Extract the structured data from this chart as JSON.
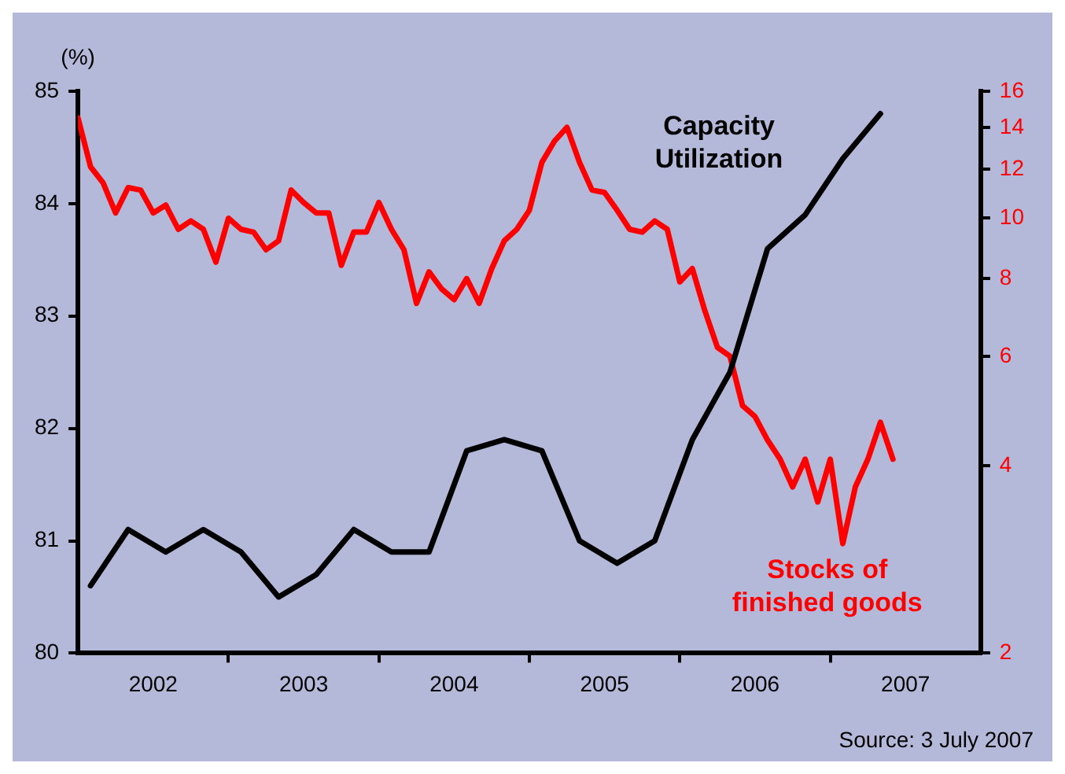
{
  "chart_data": {
    "type": "line",
    "ylabel": "(%)",
    "log": "y2",
    "grid": false,
    "legend": false,
    "marker": "none",
    "line_style": "solid",
    "xlim": [
      "2002-01",
      "2008-01"
    ],
    "xticks": [
      {
        "value": "2002-07",
        "label": "2002"
      },
      {
        "value": "2003-01",
        "label": null
      },
      {
        "value": "2003-07",
        "label": "2003"
      },
      {
        "value": "2004-01",
        "label": null
      },
      {
        "value": "2004-07",
        "label": "2004"
      },
      {
        "value": "2005-01",
        "label": null
      },
      {
        "value": "2005-07",
        "label": "2005"
      },
      {
        "value": "2006-01",
        "label": null
      },
      {
        "value": "2006-07",
        "label": "2006"
      },
      {
        "value": "2007-01",
        "label": null
      },
      {
        "value": "2007-07",
        "label": "2007"
      }
    ],
    "ylim": [
      80,
      85
    ],
    "yticks": [
      80,
      81,
      82,
      83,
      84,
      85
    ],
    "y2lim": [
      2,
      16
    ],
    "y2ticks": [
      2,
      4,
      6,
      8,
      10,
      12,
      14,
      16
    ],
    "series": [
      {
        "name": "Capacity Utilization",
        "color": "#000000",
        "x": [
          "2002-02",
          "2002-05",
          "2002-08",
          "2002-11",
          "2003-02",
          "2003-05",
          "2003-08",
          "2003-11",
          "2004-02",
          "2004-05",
          "2004-08",
          "2004-11",
          "2005-02",
          "2005-05",
          "2005-08",
          "2005-11",
          "2006-02",
          "2006-05",
          "2006-08",
          "2006-11",
          "2007-02",
          "2007-05"
        ],
        "values": [
          80.6,
          81.1,
          80.9,
          81.1,
          80.9,
          80.5,
          80.7,
          81.1,
          80.9,
          80.9,
          81.8,
          81.9,
          81.8,
          81.0,
          80.8,
          81.0,
          81.9,
          82.5,
          83.6,
          83.9,
          84.4,
          84.8
        ]
      },
      {
        "name": "Stocks of finished goods",
        "color": "#ff0000",
        "axis": "y2",
        "x": [
          "2002-01",
          "2002-02",
          "2002-03",
          "2002-04",
          "2002-05",
          "2002-06",
          "2002-07",
          "2002-08",
          "2002-09",
          "2002-10",
          "2002-11",
          "2002-12",
          "2003-01",
          "2003-02",
          "2003-03",
          "2003-04",
          "2003-05",
          "2003-06",
          "2003-07",
          "2003-08",
          "2003-09",
          "2003-10",
          "2003-11",
          "2003-12",
          "2004-01",
          "2004-02",
          "2004-03",
          "2004-04",
          "2004-05",
          "2004-06",
          "2004-07",
          "2004-08",
          "2004-09",
          "2004-10",
          "2004-11",
          "2004-12",
          "2005-01",
          "2005-02",
          "2005-03",
          "2005-04",
          "2005-05",
          "2005-06",
          "2005-07",
          "2005-08",
          "2005-09",
          "2005-10",
          "2005-11",
          "2005-12",
          "2006-01",
          "2006-02",
          "2006-03",
          "2006-04",
          "2006-05",
          "2006-06",
          "2006-07",
          "2006-08",
          "2006-09",
          "2006-10",
          "2006-11",
          "2006-12",
          "2007-01",
          "2007-02",
          "2007-03",
          "2007-04",
          "2007-05",
          "2007-06"
        ],
        "values": [
          14.5,
          12.1,
          11.4,
          10.2,
          11.2,
          11.1,
          10.2,
          10.5,
          9.6,
          9.9,
          9.6,
          8.5,
          10.0,
          9.6,
          9.5,
          8.9,
          9.2,
          11.1,
          10.6,
          10.2,
          10.2,
          8.4,
          9.5,
          9.5,
          10.6,
          9.6,
          8.9,
          7.3,
          8.2,
          7.7,
          7.4,
          8.0,
          7.3,
          8.3,
          9.2,
          9.6,
          10.3,
          12.3,
          13.3,
          14.0,
          12.3,
          11.1,
          11.0,
          10.3,
          9.6,
          9.5,
          9.9,
          9.6,
          7.9,
          8.3,
          7.1,
          6.2,
          6.0,
          5.0,
          4.8,
          4.4,
          4.1,
          3.7,
          4.1,
          3.5,
          4.1,
          3.0,
          3.7,
          4.1,
          4.7,
          4.1
        ]
      }
    ],
    "annotations": [
      "Source: 3 July 2007"
    ]
  }
}
